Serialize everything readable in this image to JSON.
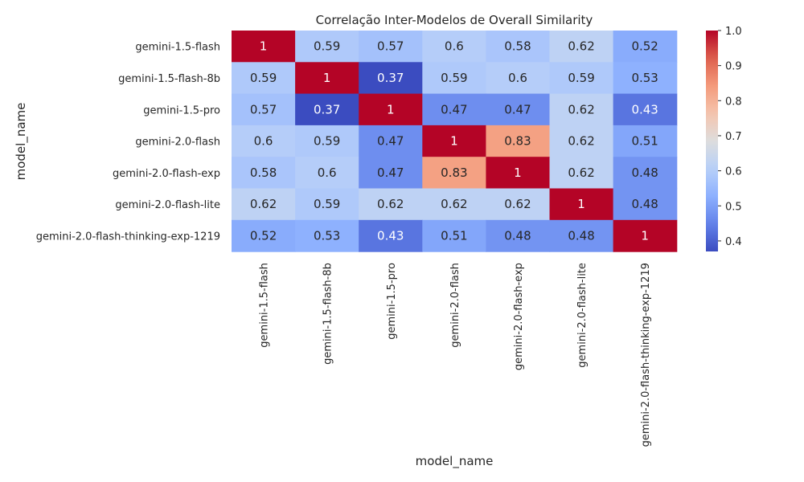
{
  "chart_data": {
    "type": "heatmap",
    "title": "Correlação Inter-Modelos de Overall Similarity",
    "xlabel": "model_name",
    "ylabel": "model_name",
    "rows": [
      "gemini-1.5-flash",
      "gemini-1.5-flash-8b",
      "gemini-1.5-pro",
      "gemini-2.0-flash",
      "gemini-2.0-flash-exp",
      "gemini-2.0-flash-lite",
      "gemini-2.0-flash-thinking-exp-1219"
    ],
    "columns": [
      "gemini-1.5-flash",
      "gemini-1.5-flash-8b",
      "gemini-1.5-pro",
      "gemini-2.0-flash",
      "gemini-2.0-flash-exp",
      "gemini-2.0-flash-lite",
      "gemini-2.0-flash-thinking-exp-1219"
    ],
    "values": [
      [
        1,
        0.59,
        0.57,
        0.6,
        0.58,
        0.62,
        0.52
      ],
      [
        0.59,
        1,
        0.37,
        0.59,
        0.6,
        0.59,
        0.53
      ],
      [
        0.57,
        0.37,
        1,
        0.47,
        0.47,
        0.62,
        0.43
      ],
      [
        0.6,
        0.59,
        0.47,
        1,
        0.83,
        0.62,
        0.51
      ],
      [
        0.58,
        0.6,
        0.47,
        0.83,
        1,
        0.62,
        0.48
      ],
      [
        0.62,
        0.59,
        0.62,
        0.62,
        0.62,
        1,
        0.48
      ],
      [
        0.52,
        0.53,
        0.43,
        0.51,
        0.48,
        0.48,
        1
      ]
    ],
    "colormap": "coolwarm",
    "colorbar": {
      "range": [
        0.37,
        1.0
      ],
      "ticks": [
        "0.4",
        "0.5",
        "0.6",
        "0.7",
        "0.8",
        "0.9",
        "1.0"
      ]
    },
    "annotations": true,
    "grid": false,
    "legend": "colorbar-right"
  }
}
